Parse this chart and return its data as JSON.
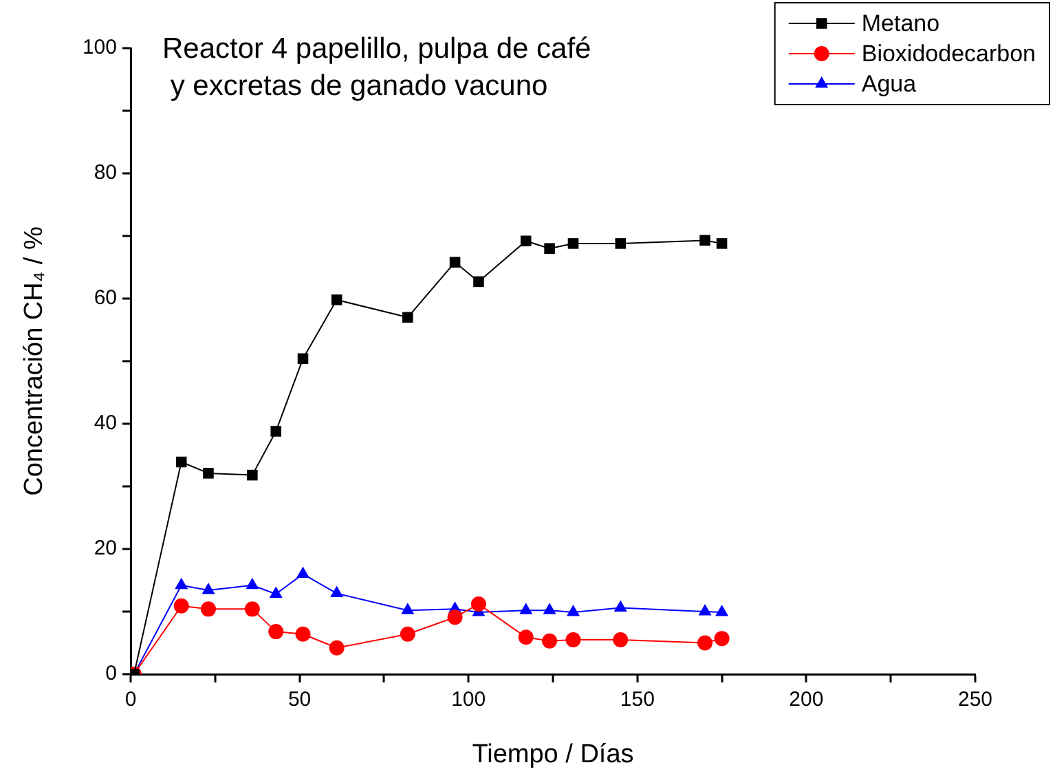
{
  "chart_data": {
    "type": "line",
    "title": "Reactor 4 papelillo, pulpa de café\n y excretas de ganado vacuno",
    "xlabel": "Tiempo / Días",
    "ylabel": "Concentración CH₄ / %",
    "x": [
      1,
      15,
      23,
      36,
      43,
      51,
      61,
      82,
      96,
      103,
      117,
      124,
      131,
      145,
      170,
      175
    ],
    "series": [
      {
        "name": "Metano",
        "color": "#000000",
        "marker": "square",
        "values": [
          0,
          33.9,
          32.1,
          31.8,
          38.8,
          50.4,
          59.8,
          57.0,
          65.8,
          62.7,
          69.2,
          68.0,
          68.8,
          68.8,
          69.3,
          68.8
        ]
      },
      {
        "name": "Bioxidodecarbon",
        "color": "#ff0000",
        "marker": "circle",
        "values": [
          0,
          10.9,
          10.4,
          10.4,
          6.8,
          6.4,
          4.2,
          6.4,
          9.1,
          11.2,
          5.9,
          5.3,
          5.5,
          5.5,
          5.0,
          5.7
        ]
      },
      {
        "name": "Agua",
        "color": "#0000ff",
        "marker": "triangle",
        "values": [
          0,
          14.2,
          13.4,
          14.2,
          12.8,
          16.0,
          12.9,
          10.2,
          10.4,
          9.9,
          10.2,
          10.2,
          9.9,
          10.6,
          10.0,
          9.9
        ]
      }
    ],
    "xlim": [
      0,
      250
    ],
    "xticks": [
      0,
      {
        "value": 25,
        "label": null
      },
      50,
      {
        "value": 75,
        "label": null
      },
      100,
      {
        "value": 125,
        "label": null
      },
      150,
      {
        "value": 175,
        "label": null
      },
      200,
      {
        "value": 225,
        "label": null
      },
      250
    ],
    "ylim": [
      0,
      100
    ],
    "yticks": [
      0,
      {
        "value": 10,
        "label": null
      },
      20,
      {
        "value": 30,
        "label": null
      },
      40,
      {
        "value": 50,
        "label": null
      },
      60,
      {
        "value": 70,
        "label": null
      },
      80,
      {
        "value": 90,
        "label": null
      },
      100
    ],
    "grid": false,
    "legend": "top right",
    "line_style": "solid"
  }
}
